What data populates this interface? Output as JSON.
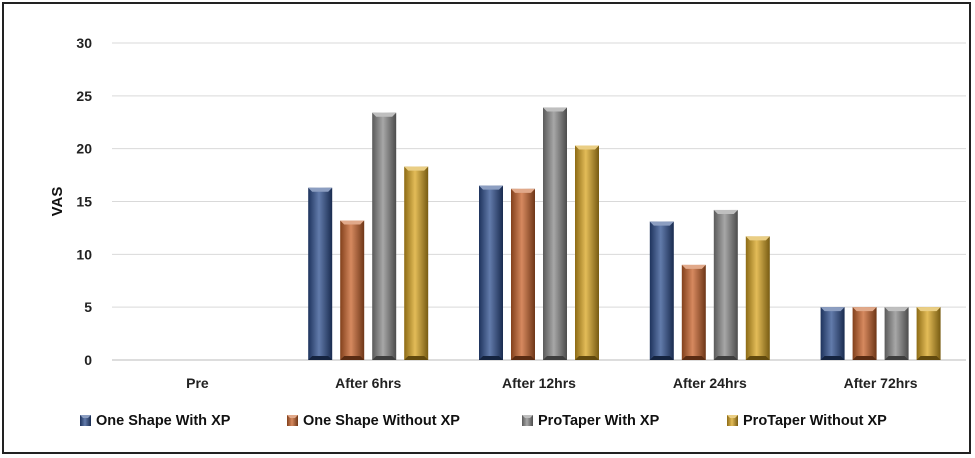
{
  "chart_data": {
    "type": "bar",
    "title": "",
    "xlabel": "",
    "ylabel": "VAS",
    "ylim": [
      0,
      30
    ],
    "yticks": [
      0,
      5,
      10,
      15,
      20,
      25,
      30
    ],
    "grid": true,
    "legend_position": "bottom",
    "categories": [
      "Pre",
      "After 6hrs",
      "After 12hrs",
      "After 24hrs",
      "After 72hrs"
    ],
    "series": [
      {
        "name": "One Shape With XP",
        "color": "#2e4f8f",
        "values": [
          0,
          16.3,
          16.5,
          13.1,
          5.0
        ]
      },
      {
        "name": "One Shape Without XP",
        "color": "#c8622a",
        "values": [
          0,
          13.2,
          16.2,
          9.0,
          5.0
        ]
      },
      {
        "name": "ProTaper With XP",
        "color": "#8a8a8a",
        "values": [
          0,
          23.4,
          23.9,
          14.2,
          5.0
        ]
      },
      {
        "name": "ProTaper Without XP",
        "color": "#d9a520",
        "values": [
          0,
          18.3,
          20.3,
          11.7,
          5.0
        ]
      }
    ]
  }
}
